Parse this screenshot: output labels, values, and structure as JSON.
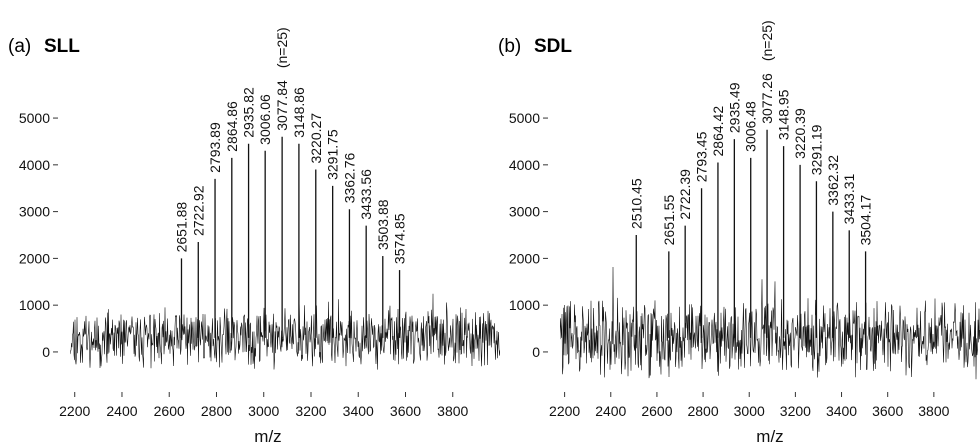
{
  "figure": {
    "panels": [
      {
        "label": "(a)",
        "name": "SLL",
        "xlabel": "m/z",
        "annotation": "(n=25)"
      },
      {
        "label": "(b)",
        "name": "SDL",
        "xlabel": "m/z",
        "annotation": "(n=25)"
      }
    ]
  },
  "chart_data": [
    {
      "type": "line",
      "title": "(a) SLL",
      "xlabel": "m/z",
      "ylabel": "",
      "xlim": [
        2180,
        4000
      ],
      "ylim": [
        -600,
        5600
      ],
      "x_ticks": [
        2200,
        2400,
        2600,
        2800,
        3000,
        3200,
        3400,
        3600,
        3800
      ],
      "y_ticks": [
        0,
        1000,
        2000,
        3000,
        4000,
        5000
      ],
      "baseline_noise": 1000,
      "annotation": "(n=25)",
      "peaks": [
        {
          "mz": 2651.88,
          "label": "2651.88",
          "intensity": 2000
        },
        {
          "mz": 2722.92,
          "label": "2722.92",
          "intensity": 2350
        },
        {
          "mz": 2793.89,
          "label": "2793.89",
          "intensity": 3700
        },
        {
          "mz": 2864.86,
          "label": "2864.86",
          "intensity": 4150
        },
        {
          "mz": 2935.82,
          "label": "2935.82",
          "intensity": 4450
        },
        {
          "mz": 3006.06,
          "label": "3006.06",
          "intensity": 4300
        },
        {
          "mz": 3077.84,
          "label": "3077.84",
          "intensity": 4600
        },
        {
          "mz": 3148.86,
          "label": "3148.86",
          "intensity": 4450
        },
        {
          "mz": 3220.27,
          "label": "3220.27",
          "intensity": 3900
        },
        {
          "mz": 3291.75,
          "label": "3291.75",
          "intensity": 3550
        },
        {
          "mz": 3362.76,
          "label": "3362.76",
          "intensity": 3050
        },
        {
          "mz": 3433.56,
          "label": "3433.56",
          "intensity": 2700
        },
        {
          "mz": 3503.88,
          "label": "3503.88",
          "intensity": 2050
        },
        {
          "mz": 3574.85,
          "label": "3574.85",
          "intensity": 1750
        }
      ]
    },
    {
      "type": "line",
      "title": "(b) SDL",
      "xlabel": "m/z",
      "ylabel": "",
      "xlim": [
        2180,
        4000
      ],
      "ylim": [
        -600,
        5600
      ],
      "x_ticks": [
        2200,
        2400,
        2600,
        2800,
        3000,
        3200,
        3400,
        3600,
        3800
      ],
      "y_ticks": [
        0,
        1000,
        2000,
        3000,
        4000,
        5000
      ],
      "baseline_noise": 1300,
      "annotation": "(n=25)",
      "peaks": [
        {
          "mz": 2510.45,
          "label": "2510.45",
          "intensity": 2500
        },
        {
          "mz": 2651.55,
          "label": "2651.55",
          "intensity": 2150
        },
        {
          "mz": 2722.39,
          "label": "2722.39",
          "intensity": 2700
        },
        {
          "mz": 2793.45,
          "label": "2793.45",
          "intensity": 3500
        },
        {
          "mz": 2864.42,
          "label": "2864.42",
          "intensity": 4050
        },
        {
          "mz": 2935.49,
          "label": "2935.49",
          "intensity": 4550
        },
        {
          "mz": 3006.48,
          "label": "3006.48",
          "intensity": 4150
        },
        {
          "mz": 3077.26,
          "label": "3077.26",
          "intensity": 4750
        },
        {
          "mz": 3148.95,
          "label": "3148.95",
          "intensity": 4400
        },
        {
          "mz": 3220.39,
          "label": "3220.39",
          "intensity": 4000
        },
        {
          "mz": 3291.19,
          "label": "3291.19",
          "intensity": 3650
        },
        {
          "mz": 3362.32,
          "label": "3362.32",
          "intensity": 3000
        },
        {
          "mz": 3433.31,
          "label": "3433.31",
          "intensity": 2600
        },
        {
          "mz": 3504.17,
          "label": "3504.17",
          "intensity": 2150
        }
      ]
    }
  ]
}
